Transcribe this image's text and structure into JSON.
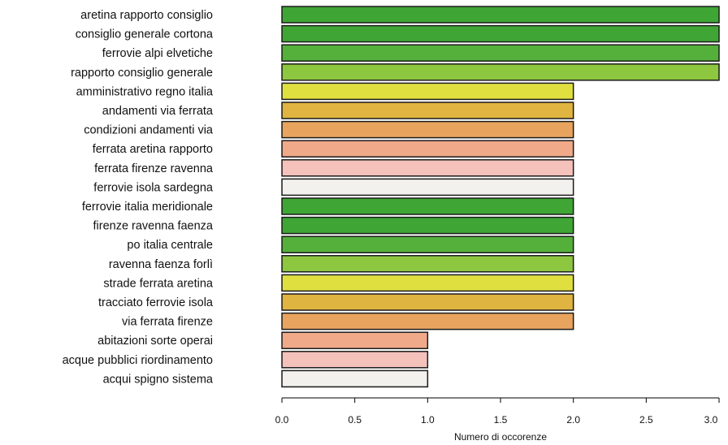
{
  "chart_data": {
    "type": "bar",
    "orientation": "horizontal",
    "categories": [
      "aretina rapporto consiglio",
      "consiglio generale cortona",
      "ferrovie alpi elvetiche",
      "rapporto consiglio generale",
      "amministrativo regno italia",
      "andamenti via ferrata",
      "condizioni andamenti via",
      "ferrata aretina rapporto",
      "ferrata firenze ravenna",
      "ferrovie isola sardegna",
      "ferrovie italia meridionale",
      "firenze ravenna faenza",
      "po italia centrale",
      "ravenna faenza forlì",
      "strade ferrata aretina",
      "tracciato ferrovie isola",
      "via ferrata firenze",
      "abitazioni sorte operai",
      "acque pubblici riordinamento",
      "acqui spigno sistema"
    ],
    "values": [
      3,
      3,
      3,
      3,
      2,
      2,
      2,
      2,
      2,
      2,
      2,
      2,
      2,
      2,
      2,
      2,
      2,
      1,
      1,
      1
    ],
    "colors": [
      "#3fa535",
      "#3fa535",
      "#54b03a",
      "#8dc63f",
      "#dfe040",
      "#e0b440",
      "#e8a45e",
      "#f0aa8a",
      "#f5c1bb",
      "#f3f1ee",
      "#3fa535",
      "#3fa535",
      "#54b03a",
      "#8dc63f",
      "#dfe040",
      "#e0b440",
      "#e8a45e",
      "#f0aa8a",
      "#f5c1bb",
      "#f3f1ee"
    ],
    "xlim": [
      0,
      3
    ],
    "xticks": [
      "0.0",
      "0.5",
      "1.0",
      "1.5",
      "2.0",
      "2.5",
      "3.0"
    ],
    "xlabel": "Numero di occorenze",
    "title": "",
    "grid": false,
    "legend": "none"
  }
}
